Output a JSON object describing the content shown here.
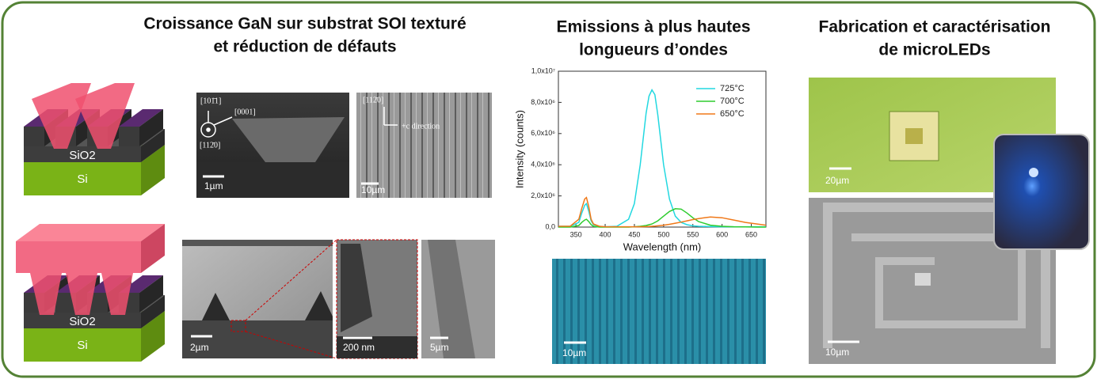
{
  "titles": {
    "growth": [
      "Croissance GaN sur substrat SOI texturé",
      "et réduction de défauts"
    ],
    "emission": [
      "Emissions à plus hautes",
      "longueurs d’ondes"
    ],
    "fabrication": [
      "Fabrication et caractérisation",
      "de microLEDs"
    ]
  },
  "schematics": [
    {
      "oxide": "SiO2",
      "substrate": "Si"
    },
    {
      "oxide": "SiO2",
      "substrate": "Si"
    }
  ],
  "sem_annotations": [
    "[101̄1]",
    "[0001]",
    "[112̄0]",
    "[112̄0]",
    "+c direction"
  ],
  "scale_bars": [
    "1µm",
    "10µm",
    "2µm",
    "200 nm",
    "5µm",
    "10µm",
    "20µm",
    "10µm"
  ],
  "chart_data": {
    "type": "line",
    "xlabel": "Wavelength (nm)",
    "ylabel": "Intensity (counts)",
    "x": [
      320,
      340,
      355,
      360,
      365,
      368,
      372,
      376,
      380,
      390,
      400,
      420,
      440,
      450,
      460,
      470,
      475,
      480,
      485,
      490,
      500,
      510,
      520,
      530,
      540,
      550,
      560,
      580,
      600,
      620,
      640,
      660,
      675
    ],
    "series": [
      {
        "name": "725°C",
        "color": "#22d8e0",
        "values": [
          50000,
          50000,
          300000,
          900000,
          1400000,
          1500000,
          1000000,
          400000,
          150000,
          50000,
          20000,
          50000,
          500000,
          1500000,
          4000000,
          7300000,
          8400000,
          8800000,
          8500000,
          7200000,
          4000000,
          1800000,
          700000,
          300000,
          150000,
          80000,
          50000,
          30000,
          20000,
          20000,
          20000,
          20000,
          20000
        ]
      },
      {
        "name": "700°C",
        "color": "#2ecc2e",
        "values": [
          0,
          0,
          100000,
          300000,
          450000,
          500000,
          350000,
          150000,
          50000,
          0,
          0,
          0,
          0,
          20000,
          50000,
          100000,
          150000,
          200000,
          300000,
          400000,
          700000,
          1000000,
          1180000,
          1150000,
          900000,
          600000,
          350000,
          120000,
          50000,
          20000,
          10000,
          0,
          0
        ]
      },
      {
        "name": "650°C",
        "color": "#f07818",
        "values": [
          50000,
          50000,
          500000,
          1200000,
          1800000,
          1900000,
          1300000,
          500000,
          200000,
          50000,
          20000,
          20000,
          20000,
          20000,
          20000,
          30000,
          40000,
          50000,
          60000,
          80000,
          120000,
          180000,
          250000,
          320000,
          400000,
          480000,
          550000,
          650000,
          600000,
          450000,
          300000,
          200000,
          120000
        ]
      }
    ],
    "xlim": [
      320,
      675
    ],
    "xticks": [
      350,
      400,
      450,
      500,
      550,
      600,
      650
    ],
    "ylim": [
      0,
      10000000
    ],
    "yticks": [
      {
        "value": 0,
        "label": "0,0"
      },
      {
        "value": 2000000,
        "label": "2,0x10⁶"
      },
      {
        "value": 4000000,
        "label": "4,0x10⁶"
      },
      {
        "value": 6000000,
        "label": "6,0x10⁶"
      },
      {
        "value": 8000000,
        "label": "8,0x10⁶"
      },
      {
        "value": 10000000,
        "label": "1,0x10⁷"
      }
    ],
    "legend": "upper right",
    "grid": false
  }
}
